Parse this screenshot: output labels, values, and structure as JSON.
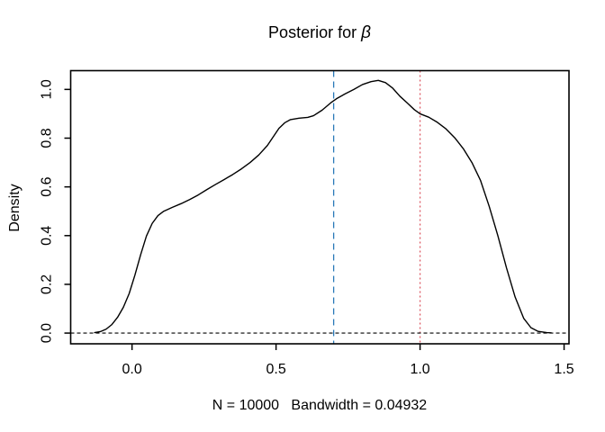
{
  "title": {
    "prefix": "Posterior for ",
    "symbol": "β"
  },
  "axes": {
    "y_label": "Density",
    "x_label": "N = 10000   Bandwidth = 0.04932"
  },
  "colors": {
    "foreground": "#000000",
    "background": "#ffffff",
    "blue_vline": "#2979b8",
    "red_vline": "#dd5a64"
  },
  "chart_data": {
    "type": "line",
    "title": "Posterior for β",
    "xlabel": "N = 10000   Bandwidth = 0.04932",
    "ylabel": "Density",
    "x_ticks": [
      0.0,
      0.5,
      1.0,
      1.5
    ],
    "y_ticks": [
      0.0,
      0.2,
      0.4,
      0.6,
      0.8,
      1.0
    ],
    "xlim": [
      -0.213,
      1.517
    ],
    "ylim": [
      -0.044,
      1.077
    ],
    "grid": false,
    "legend": null,
    "series": [
      {
        "name": "posterior-density",
        "color": "#000000",
        "points": [
          [
            -0.13,
            0.002
          ],
          [
            -0.11,
            0.006
          ],
          [
            -0.09,
            0.016
          ],
          [
            -0.07,
            0.035
          ],
          [
            -0.05,
            0.065
          ],
          [
            -0.03,
            0.106
          ],
          [
            -0.01,
            0.162
          ],
          [
            0.01,
            0.238
          ],
          [
            0.03,
            0.322
          ],
          [
            0.05,
            0.398
          ],
          [
            0.07,
            0.45
          ],
          [
            0.09,
            0.482
          ],
          [
            0.11,
            0.5
          ],
          [
            0.14,
            0.516
          ],
          [
            0.17,
            0.531
          ],
          [
            0.2,
            0.548
          ],
          [
            0.23,
            0.567
          ],
          [
            0.26,
            0.589
          ],
          [
            0.29,
            0.61
          ],
          [
            0.32,
            0.63
          ],
          [
            0.35,
            0.651
          ],
          [
            0.38,
            0.674
          ],
          [
            0.41,
            0.7
          ],
          [
            0.44,
            0.731
          ],
          [
            0.47,
            0.77
          ],
          [
            0.49,
            0.805
          ],
          [
            0.51,
            0.84
          ],
          [
            0.53,
            0.863
          ],
          [
            0.55,
            0.876
          ],
          [
            0.58,
            0.882
          ],
          [
            0.61,
            0.885
          ],
          [
            0.63,
            0.892
          ],
          [
            0.66,
            0.915
          ],
          [
            0.69,
            0.945
          ],
          [
            0.71,
            0.962
          ],
          [
            0.74,
            0.982
          ],
          [
            0.77,
            1.0
          ],
          [
            0.8,
            1.02
          ],
          [
            0.83,
            1.032
          ],
          [
            0.855,
            1.037
          ],
          [
            0.88,
            1.028
          ],
          [
            0.905,
            1.005
          ],
          [
            0.93,
            0.972
          ],
          [
            0.955,
            0.945
          ],
          [
            0.98,
            0.917
          ],
          [
            1.0,
            0.9
          ],
          [
            1.03,
            0.886
          ],
          [
            1.06,
            0.865
          ],
          [
            1.09,
            0.838
          ],
          [
            1.12,
            0.802
          ],
          [
            1.15,
            0.757
          ],
          [
            1.18,
            0.7
          ],
          [
            1.21,
            0.626
          ],
          [
            1.24,
            0.52
          ],
          [
            1.27,
            0.4
          ],
          [
            1.3,
            0.268
          ],
          [
            1.33,
            0.148
          ],
          [
            1.36,
            0.06
          ],
          [
            1.385,
            0.022
          ],
          [
            1.41,
            0.007
          ],
          [
            1.44,
            0.002
          ],
          [
            1.455,
            0.001
          ]
        ]
      }
    ],
    "reference_lines": [
      {
        "name": "vline-dashed-blue",
        "type": "vertical",
        "x": 0.7,
        "style": "dashed",
        "dash": "7,5",
        "color": "#2979b8"
      },
      {
        "name": "vline-dotted-red",
        "type": "vertical",
        "x": 1.0,
        "style": "dotted",
        "dash": "2,3",
        "color": "#dd5a64"
      },
      {
        "name": "hline-dashed-black",
        "type": "horizontal",
        "y": 0.0,
        "style": "dashed",
        "dash": "4,3",
        "color": "#000000"
      }
    ]
  }
}
